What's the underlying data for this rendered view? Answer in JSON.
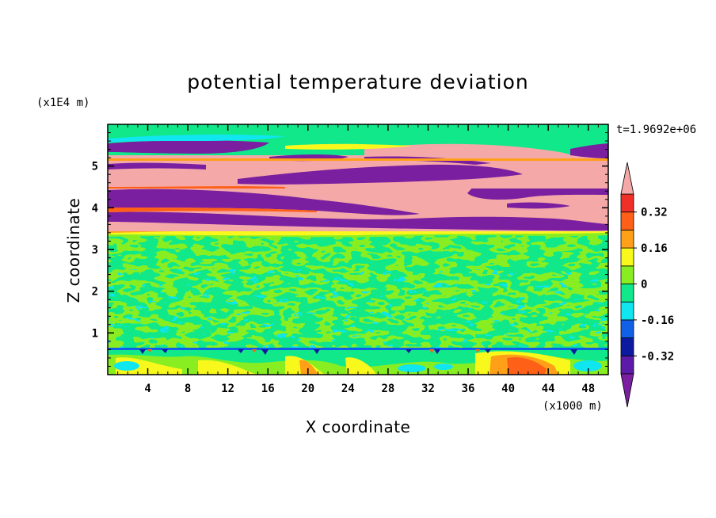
{
  "chart_data": {
    "type": "heatmap",
    "title": "potential temperature deviation",
    "xlabel": "X coordinate",
    "ylabel": "Z coordinate",
    "x_unit": "(x1000 m)",
    "y_unit": "(x1E4 m)",
    "time_label": "t=1.9692e+06",
    "xlim": [
      0,
      50
    ],
    "ylim": [
      0,
      6
    ],
    "x_ticks": [
      "4",
      "8",
      "12",
      "16",
      "20",
      "24",
      "28",
      "32",
      "36",
      "40",
      "44",
      "48"
    ],
    "y_ticks": [
      "1",
      "2",
      "3",
      "4",
      "5"
    ],
    "colorbar": {
      "levels": [
        -0.4,
        -0.32,
        -0.24,
        -0.16,
        -0.08,
        0,
        0.08,
        0.16,
        0.24,
        0.32,
        0.4
      ],
      "tick_labels": [
        "0.32",
        "0.16",
        "0",
        "-0.16",
        "-0.32"
      ],
      "extend": "both",
      "colors": {
        "below": "#7a1fa0",
        "bands": [
          "#5b1aa8",
          "#0c1aa0",
          "#1060e8",
          "#10e6f0",
          "#10e88a",
          "#88ee22",
          "#f8f81c",
          "#ffa018",
          "#ff6018",
          "#f03028"
        ],
        "above": "#f5a8a8"
      }
    },
    "regions": [
      {
        "z_range": [
          0,
          0.6
        ],
        "description": "near-surface mixed anomalies, orange/yellow plumes around x=4, 18-20, 42-46"
      },
      {
        "z_range": [
          0.6,
          3.4
        ],
        "description": "weak anomalies near 0 (green)"
      },
      {
        "z_range": [
          3.4,
          5.6
        ],
        "description": "strong alternating layers of >0.4 (pink) and <-0.4 (purple)"
      },
      {
        "z_range": [
          5.6,
          6.0
        ],
        "description": "near 0 (green/yellow)"
      }
    ]
  }
}
